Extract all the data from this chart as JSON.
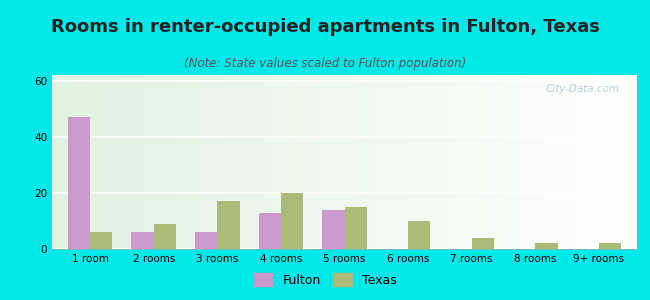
{
  "title": "Rooms in renter-occupied apartments in Fulton, Texas",
  "subtitle": "(Note: State values scaled to Fulton population)",
  "categories": [
    "1 room",
    "2 rooms",
    "3 rooms",
    "4 rooms",
    "5 rooms",
    "6 rooms",
    "7 rooms",
    "8 rooms",
    "9+ rooms"
  ],
  "fulton_values": [
    47,
    6,
    6,
    13,
    14,
    0,
    0,
    0,
    0
  ],
  "texas_values": [
    6,
    9,
    17,
    20,
    15,
    10,
    4,
    2,
    2
  ],
  "fulton_color": "#cc99cc",
  "texas_color": "#aabb77",
  "background_outer": "#00e8e8",
  "ylim": [
    0,
    62
  ],
  "yticks": [
    0,
    20,
    40,
    60
  ],
  "bar_width": 0.35,
  "title_fontsize": 13,
  "subtitle_fontsize": 8.5,
  "tick_fontsize": 7.5,
  "legend_fontsize": 9,
  "watermark": "City-Data.com"
}
